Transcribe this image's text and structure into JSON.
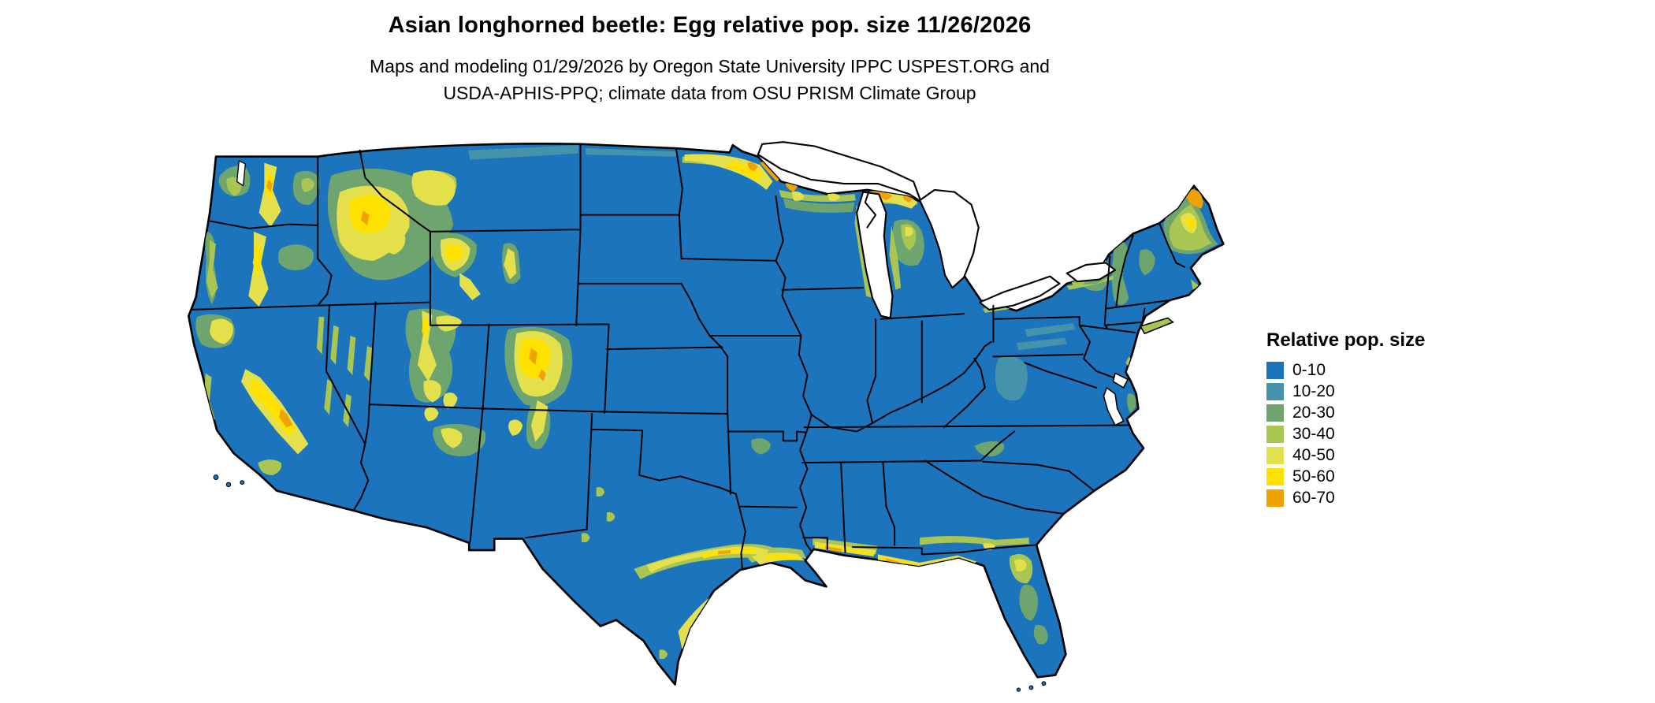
{
  "header": {
    "title": "Asian longhorned beetle: Egg relative pop. size 11/26/2026",
    "subtitle_line1": "Maps and modeling 01/29/2026 by Oregon State University IPPC USPEST.ORG and",
    "subtitle_line2": "USDA-APHIS-PPQ; climate data from OSU PRISM Climate Group"
  },
  "map": {
    "base_color": "#1c75bc",
    "border_color": "#000000",
    "water_color": "#ffffff"
  },
  "legend": {
    "title": "Relative pop. size",
    "entries": [
      {
        "label": "0-10",
        "color": "#1c75bc"
      },
      {
        "label": "10-20",
        "color": "#4592ab"
      },
      {
        "label": "20-30",
        "color": "#6ea56f"
      },
      {
        "label": "30-40",
        "color": "#a9c653"
      },
      {
        "label": "40-50",
        "color": "#e3e04b"
      },
      {
        "label": "50-60",
        "color": "#ffe100"
      },
      {
        "label": "60-70",
        "color": "#f0a202"
      }
    ]
  }
}
